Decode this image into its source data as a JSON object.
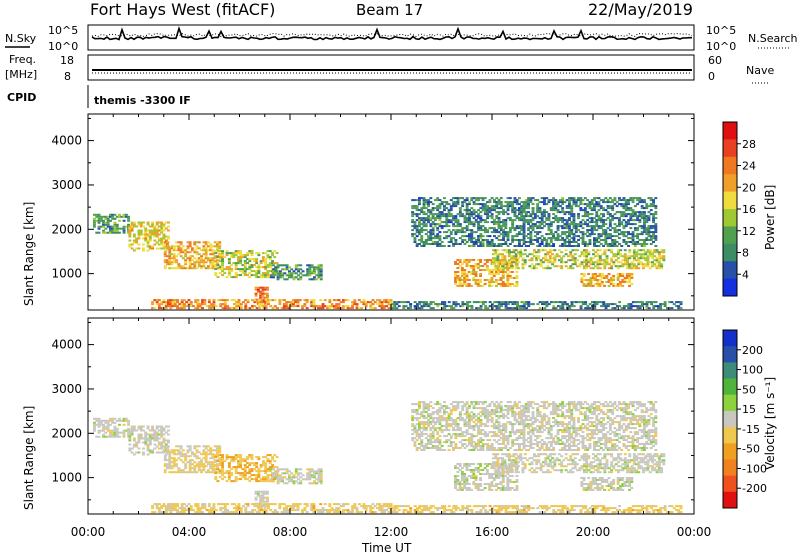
{
  "header": {
    "station": "Fort Hays West (fitACF)",
    "beam": "Beam 17",
    "date": "22/May/2019"
  },
  "noise_panel": {
    "left_label": "N.Sky",
    "left_ticks": [
      "10^5",
      "10^0"
    ],
    "right_label": "N.Search",
    "right_ticks": [
      "10^5",
      "10^0"
    ]
  },
  "freq_panel": {
    "left_label_1": "Freq.",
    "left_label_2": "[MHz]",
    "left_ticks": [
      "18",
      "8"
    ],
    "right_label": "Nave",
    "right_ticks": [
      "60",
      "0"
    ]
  },
  "cpid": {
    "label": "CPID",
    "value": "themis -3300 IF"
  },
  "x_axis": {
    "title": "Time UT",
    "tick_labels": [
      "00:00",
      "04:00",
      "08:00",
      "12:00",
      "16:00",
      "20:00",
      "00:00"
    ]
  },
  "colors": {
    "power": [
      "#1430e0",
      "#2850a8",
      "#3c8c64",
      "#50a050",
      "#a0c832",
      "#f0dc3c",
      "#f0a028",
      "#f07820",
      "#e84020",
      "#e01010"
    ],
    "velocity": [
      "#1430c8",
      "#2850a8",
      "#3c8c78",
      "#50b43c",
      "#8cd23c",
      "#c8c8c0",
      "#f0c850",
      "#f0a020",
      "#f08020",
      "#f05020",
      "#e01010"
    ]
  },
  "chart_data": [
    {
      "type": "heatmap",
      "name": "power",
      "ylabel": "Slant Range [km]",
      "xlabel": "Time UT",
      "x_range_hours": [
        0,
        24
      ],
      "ylim": [
        180,
        4600
      ],
      "y_ticks": [
        1000,
        2000,
        3000,
        4000
      ],
      "colorbar": {
        "label": "Power [dB]",
        "ticks": [
          "4",
          "8",
          "12",
          "16",
          "20",
          "24",
          "28"
        ],
        "min": 0,
        "max": 32
      },
      "echo_regions": [
        {
          "t0": 0.2,
          "t1": 1.6,
          "r0": 1900,
          "r1": 2350,
          "value": 10
        },
        {
          "t0": 1.6,
          "t1": 3.2,
          "r0": 1500,
          "r1": 2150,
          "value": 18
        },
        {
          "t0": 3.0,
          "t1": 5.2,
          "r0": 1100,
          "r1": 1700,
          "value": 20
        },
        {
          "t0": 5.0,
          "t1": 7.5,
          "r0": 900,
          "r1": 1500,
          "value": 16
        },
        {
          "t0": 7.2,
          "t1": 9.2,
          "r0": 850,
          "r1": 1200,
          "value": 10
        },
        {
          "t0": 6.6,
          "t1": 7.1,
          "r0": 300,
          "r1": 700,
          "value": 24
        },
        {
          "t0": 2.5,
          "t1": 12.0,
          "r0": 200,
          "r1": 420,
          "value": 22
        },
        {
          "t0": 12.0,
          "t1": 23.5,
          "r0": 200,
          "r1": 350,
          "value": 8
        },
        {
          "t0": 14.5,
          "t1": 17.0,
          "r0": 700,
          "r1": 1300,
          "value": 20
        },
        {
          "t0": 16.0,
          "t1": 22.8,
          "r0": 1100,
          "r1": 1550,
          "value": 16
        },
        {
          "t0": 19.5,
          "t1": 21.5,
          "r0": 700,
          "r1": 1000,
          "value": 20
        },
        {
          "t0": 12.8,
          "t1": 22.5,
          "r0": 1600,
          "r1": 2700,
          "value": 8
        }
      ]
    },
    {
      "type": "heatmap",
      "name": "velocity",
      "ylabel": "Slant Range [km]",
      "xlabel": "Time UT",
      "x_range_hours": [
        0,
        24
      ],
      "ylim": [
        180,
        4600
      ],
      "y_ticks": [
        1000,
        2000,
        3000,
        4000
      ],
      "colorbar": {
        "label": "Velocity [m s⁻¹]",
        "ticks": [
          "200",
          "100",
          "50",
          "15",
          "-15",
          "-50",
          "-100",
          "-200"
        ],
        "min": -250,
        "max": 250
      },
      "echo_regions": [
        {
          "t0": 0.2,
          "t1": 1.6,
          "r0": 1900,
          "r1": 2350,
          "value": 0
        },
        {
          "t0": 1.6,
          "t1": 3.2,
          "r0": 1500,
          "r1": 2150,
          "value": 0
        },
        {
          "t0": 3.0,
          "t1": 5.2,
          "r0": 1100,
          "r1": 1700,
          "value": -30
        },
        {
          "t0": 5.0,
          "t1": 7.5,
          "r0": 900,
          "r1": 1500,
          "value": -60
        },
        {
          "t0": 7.2,
          "t1": 9.2,
          "r0": 850,
          "r1": 1200,
          "value": 0
        },
        {
          "t0": 6.6,
          "t1": 7.1,
          "r0": 300,
          "r1": 700,
          "value": 0
        },
        {
          "t0": 2.5,
          "t1": 12.0,
          "r0": 200,
          "r1": 420,
          "value": -40
        },
        {
          "t0": 12.0,
          "t1": 23.5,
          "r0": 200,
          "r1": 350,
          "value": -40
        },
        {
          "t0": 14.5,
          "t1": 17.0,
          "r0": 700,
          "r1": 1300,
          "value": 0
        },
        {
          "t0": 16.0,
          "t1": 22.8,
          "r0": 1100,
          "r1": 1550,
          "value": 0
        },
        {
          "t0": 19.5,
          "t1": 21.5,
          "r0": 700,
          "r1": 1000,
          "value": 0
        },
        {
          "t0": 12.8,
          "t1": 22.5,
          "r0": 1600,
          "r1": 2700,
          "value": 0
        }
      ]
    }
  ]
}
